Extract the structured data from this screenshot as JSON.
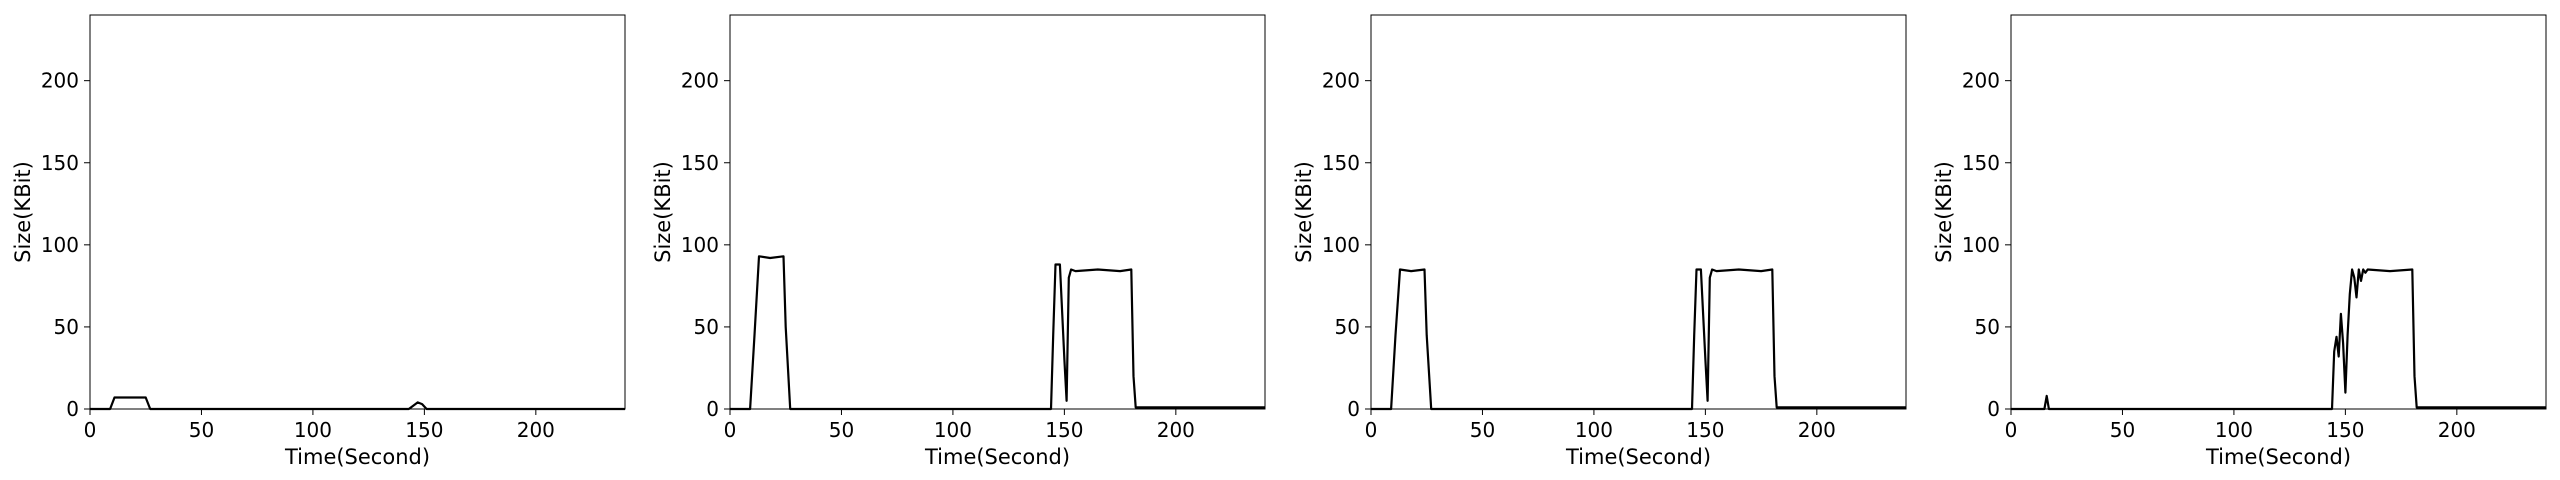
{
  "chart_data": [
    {
      "type": "line",
      "xlabel": "Time(Second)",
      "ylabel": "Size(KBit)",
      "xlim": [
        0,
        240
      ],
      "ylim": [
        0,
        240
      ],
      "xticks": [
        0,
        50,
        100,
        150,
        200
      ],
      "yticks": [
        0,
        50,
        100,
        150,
        200
      ],
      "line_color": "#000000",
      "series": [
        {
          "x": [
            0,
            9,
            11,
            25,
            27,
            40,
            80,
            120,
            143,
            145,
            147,
            149,
            151,
            153,
            160,
            200,
            240
          ],
          "y": [
            0,
            0,
            7,
            7,
            0,
            0,
            0,
            0,
            0,
            2,
            4,
            3,
            0,
            0,
            0,
            0,
            0
          ]
        }
      ]
    },
    {
      "type": "line",
      "xlabel": "Time(Second)",
      "ylabel": "Size(KBit)",
      "xlim": [
        0,
        240
      ],
      "ylim": [
        0,
        240
      ],
      "xticks": [
        0,
        50,
        100,
        150,
        200
      ],
      "yticks": [
        0,
        50,
        100,
        150,
        200
      ],
      "line_color": "#000000",
      "series": [
        {
          "x": [
            0,
            9,
            11,
            13,
            18,
            24,
            25,
            27,
            40,
            80,
            120,
            144,
            145,
            146,
            148,
            150,
            151,
            152,
            153,
            155,
            165,
            175,
            180,
            181,
            182,
            200,
            240
          ],
          "y": [
            0,
            0,
            45,
            93,
            92,
            93,
            50,
            0,
            0,
            0,
            0,
            0,
            45,
            88,
            88,
            30,
            5,
            80,
            85,
            84,
            85,
            84,
            85,
            20,
            1,
            1,
            1
          ]
        }
      ]
    },
    {
      "type": "line",
      "xlabel": "Time(Second)",
      "ylabel": "Size(KBit)",
      "xlim": [
        0,
        240
      ],
      "ylim": [
        0,
        240
      ],
      "xticks": [
        0,
        50,
        100,
        150,
        200
      ],
      "yticks": [
        0,
        50,
        100,
        150,
        200
      ],
      "line_color": "#000000",
      "series": [
        {
          "x": [
            0,
            9,
            11,
            13,
            18,
            24,
            25,
            27,
            40,
            80,
            120,
            144,
            145,
            146,
            148,
            150,
            151,
            152,
            153,
            155,
            165,
            175,
            180,
            181,
            182,
            200,
            240
          ],
          "y": [
            0,
            0,
            45,
            85,
            84,
            85,
            45,
            0,
            0,
            0,
            0,
            0,
            45,
            85,
            85,
            30,
            5,
            80,
            85,
            84,
            85,
            84,
            85,
            20,
            1,
            1,
            1
          ]
        }
      ]
    },
    {
      "type": "line",
      "xlabel": "Time(Second)",
      "ylabel": "Size(KBit)",
      "xlim": [
        0,
        240
      ],
      "ylim": [
        0,
        240
      ],
      "xticks": [
        0,
        50,
        100,
        150,
        200
      ],
      "yticks": [
        0,
        50,
        100,
        150,
        200
      ],
      "line_color": "#000000",
      "series": [
        {
          "x": [
            0,
            15,
            16,
            17,
            20,
            60,
            100,
            140,
            144,
            145,
            146,
            147,
            148,
            149,
            150,
            151,
            152,
            153,
            154,
            155,
            156,
            157,
            158,
            159,
            160,
            170,
            180,
            181,
            182,
            200,
            240
          ],
          "y": [
            0,
            0,
            8,
            0,
            0,
            0,
            0,
            0,
            0,
            35,
            44,
            32,
            58,
            40,
            10,
            45,
            70,
            85,
            80,
            68,
            85,
            78,
            85,
            83,
            85,
            84,
            85,
            20,
            1,
            1,
            1
          ]
        }
      ]
    }
  ]
}
